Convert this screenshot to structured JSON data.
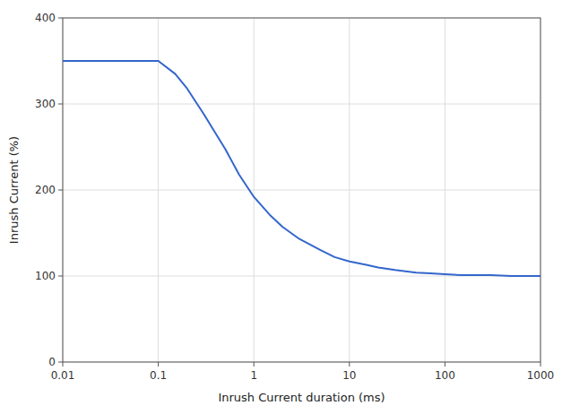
{
  "chart_data": {
    "type": "line",
    "xlabel": "Inrush Current duration (ms)",
    "ylabel": "Inrush Current (%)",
    "log": "x",
    "grid": true,
    "xlim": [
      0.01,
      1000
    ],
    "ylim": [
      0,
      400
    ],
    "xticks": [
      0.01,
      0.1,
      1,
      10,
      100,
      1000
    ],
    "yticks": [
      0,
      100,
      200,
      300,
      400
    ],
    "x": [
      0.01,
      0.02,
      0.03,
      0.05,
      0.07,
      0.1,
      0.15,
      0.2,
      0.3,
      0.5,
      0.7,
      1.0,
      1.5,
      2.0,
      3.0,
      5.0,
      7.0,
      10.0,
      15.0,
      20.0,
      30.0,
      50.0,
      70.0,
      100.0,
      150.0,
      200.0,
      300.0,
      500.0,
      700.0,
      1000.0
    ],
    "series": [
      {
        "color": "#3366cc",
        "values": [
          350,
          350,
          350,
          350,
          350,
          350,
          335,
          318,
          288,
          248,
          218,
          192,
          170,
          157,
          143,
          130,
          122,
          117,
          113,
          110,
          107,
          104,
          103,
          102,
          101,
          101,
          101,
          100,
          100,
          100
        ]
      }
    ]
  }
}
